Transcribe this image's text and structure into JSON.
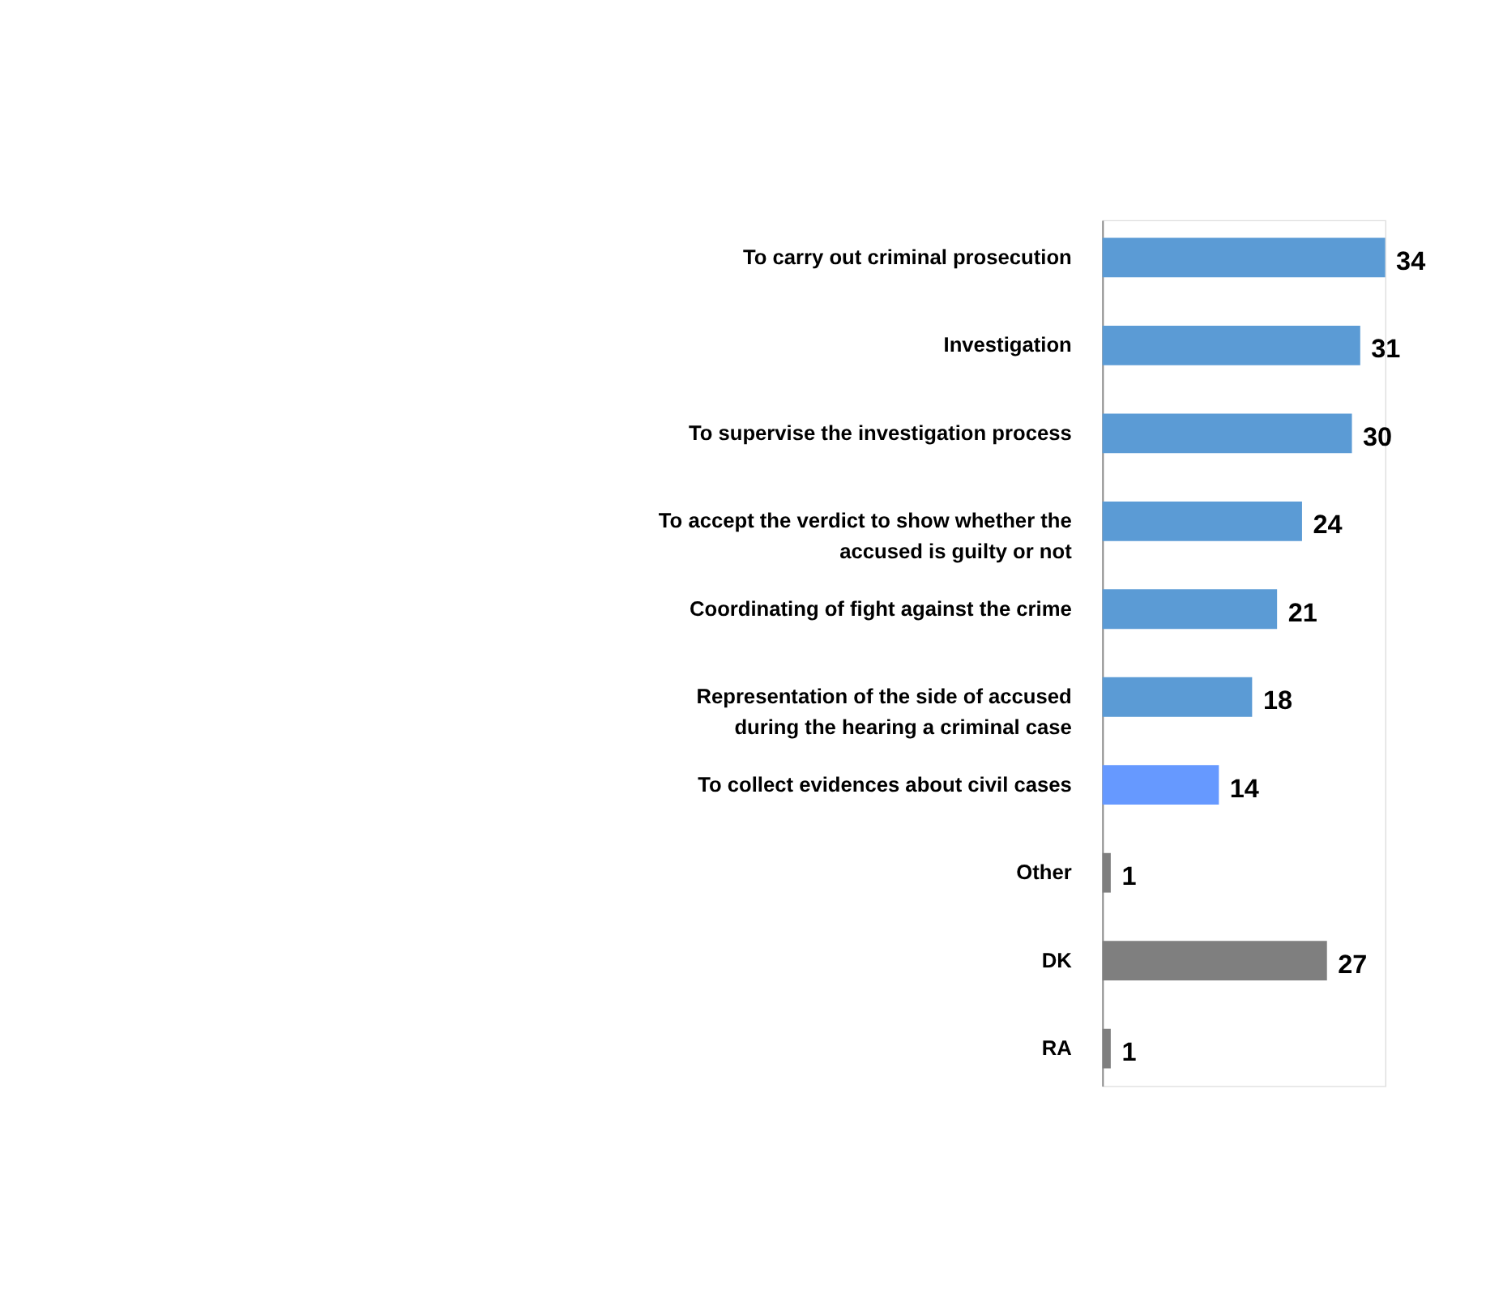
{
  "chart_data": {
    "type": "bar",
    "orientation": "horizontal",
    "data_labels": true,
    "categories": [
      "To carry out criminal prosecution",
      "Investigation",
      "To supervise the investigation process",
      "To accept the verdict to show whether the accused is guilty or not",
      "Coordinating of fight against the  crime",
      "Representation of the side of accused during the hearing a criminal case",
      "To collect evidences about civil cases",
      "Other",
      "DK",
      "RA"
    ],
    "values": [
      34,
      31,
      30,
      24,
      21,
      18,
      14,
      1,
      27,
      1
    ],
    "colors": [
      "#5b9bd5",
      "#5b9bd5",
      "#5b9bd5",
      "#5b9bd5",
      "#5b9bd5",
      "#5b9bd5",
      "#6699ff",
      "#7f7f7f",
      "#7f7f7f",
      "#7f7f7f"
    ]
  }
}
